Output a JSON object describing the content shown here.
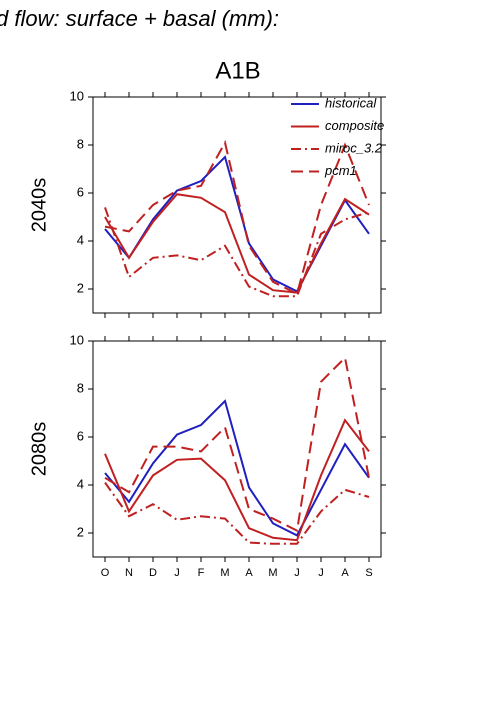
{
  "title": "d flow: surface + basal (mm):",
  "subtitle": "A1B",
  "chart_data": [
    {
      "type": "line",
      "ylabel": "2040s",
      "ylim": [
        1,
        10
      ],
      "yticks": [
        2,
        4,
        6,
        8,
        10
      ],
      "legend": "upper right",
      "series": [
        {
          "name": "historical",
          "color": "#2020c0",
          "style": "solid",
          "values": [
            4.5,
            3.3,
            4.9,
            6.1,
            6.5,
            7.5,
            3.9,
            2.4,
            1.9,
            3.8,
            5.7,
            4.3
          ]
        },
        {
          "name": "composite",
          "color": "#c02020",
          "style": "solid",
          "values": [
            5.0,
            3.3,
            4.8,
            5.95,
            5.8,
            5.2,
            2.6,
            1.95,
            1.85,
            3.9,
            5.75,
            5.1
          ]
        },
        {
          "name": "miroc_3.2",
          "color": "#c02020",
          "style": "dashdot",
          "values": [
            5.4,
            2.5,
            3.3,
            3.4,
            3.2,
            3.8,
            2.1,
            1.7,
            1.7,
            4.3,
            4.9,
            5.2
          ]
        },
        {
          "name": "pcm1",
          "color": "#c02020",
          "style": "dash",
          "values": [
            4.6,
            4.4,
            5.5,
            6.1,
            6.3,
            8.1,
            3.8,
            2.3,
            1.8,
            5.5,
            8.0,
            5.5
          ]
        }
      ]
    },
    {
      "type": "line",
      "ylabel": "2080s",
      "ylim": [
        1,
        10
      ],
      "yticks": [
        2,
        4,
        6,
        8,
        10
      ],
      "categories": [
        "O",
        "N",
        "D",
        "J",
        "F",
        "M",
        "A",
        "M",
        "J",
        "J",
        "A",
        "S"
      ],
      "series": [
        {
          "color": "#2020c0",
          "style": "solid",
          "values": [
            4.5,
            3.3,
            4.9,
            6.1,
            6.5,
            7.5,
            3.9,
            2.4,
            1.9,
            3.8,
            5.7,
            4.3
          ]
        },
        {
          "color": "#c02020",
          "style": "solid",
          "values": [
            5.3,
            2.9,
            4.4,
            5.05,
            5.1,
            4.2,
            2.2,
            1.8,
            1.7,
            4.4,
            6.7,
            5.4
          ]
        },
        {
          "color": "#c02020",
          "style": "dashdot",
          "values": [
            4.1,
            2.7,
            3.2,
            2.55,
            2.7,
            2.6,
            1.6,
            1.55,
            1.55,
            2.9,
            3.8,
            3.5
          ]
        },
        {
          "color": "#c02020",
          "style": "dash",
          "values": [
            4.3,
            3.7,
            5.6,
            5.6,
            5.4,
            6.4,
            3.0,
            2.6,
            2.1,
            8.3,
            9.3,
            4.3
          ]
        }
      ]
    }
  ]
}
